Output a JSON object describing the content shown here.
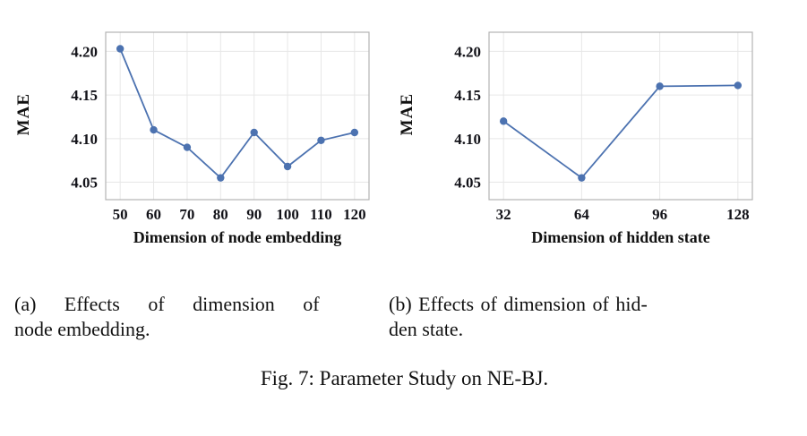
{
  "figure": {
    "caption_a_line1": "(a) Effects of dimension of",
    "caption_a_line2": "node embedding.",
    "caption_b_line1": "(b) Effects of dimension of hid-",
    "caption_b_line2": "den state.",
    "fig_caption": "Fig. 7: Parameter Study on NE-BJ."
  },
  "chart_data": [
    {
      "type": "line",
      "x": [
        50,
        60,
        70,
        80,
        90,
        100,
        110,
        120
      ],
      "values": [
        4.203,
        4.11,
        4.09,
        4.055,
        4.107,
        4.068,
        4.098,
        4.107
      ],
      "title": "",
      "xlabel": "Dimension of node embedding",
      "ylabel": "MAE",
      "yticks": [
        4.05,
        4.1,
        4.15,
        4.2
      ],
      "ylim": [
        4.03,
        4.222
      ],
      "grid": true,
      "line_color": "#4c72b0",
      "grid_color": "#e7e7e7",
      "border_color": "#b3b3b3"
    },
    {
      "type": "line",
      "x": [
        32,
        64,
        96,
        128
      ],
      "values": [
        4.12,
        4.055,
        4.16,
        4.161
      ],
      "title": "",
      "xlabel": "Dimension of hidden state",
      "ylabel": "MAE",
      "yticks": [
        4.05,
        4.1,
        4.15,
        4.2
      ],
      "ylim": [
        4.03,
        4.222
      ],
      "grid": true,
      "line_color": "#4c72b0",
      "grid_color": "#e7e7e7",
      "border_color": "#b3b3b3"
    }
  ]
}
